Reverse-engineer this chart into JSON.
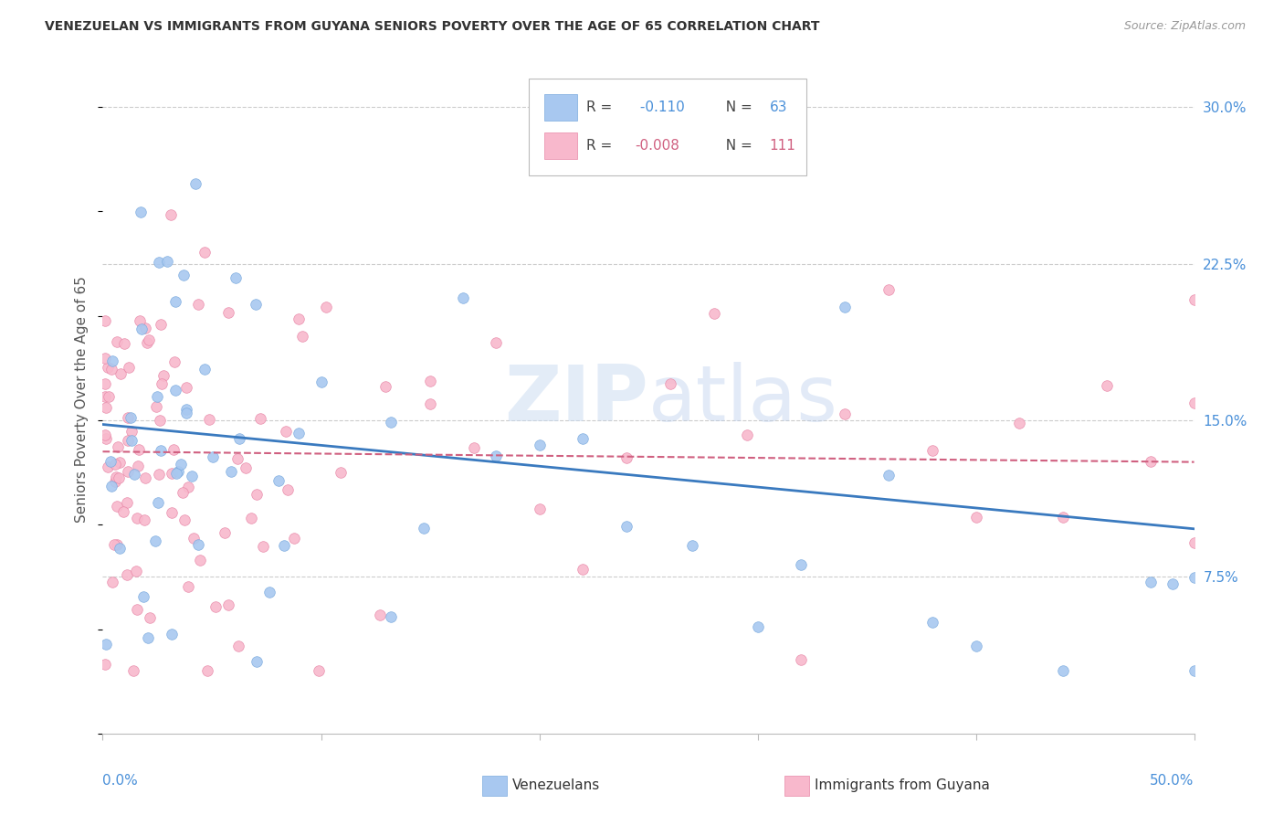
{
  "title": "VENEZUELAN VS IMMIGRANTS FROM GUYANA SENIORS POVERTY OVER THE AGE OF 65 CORRELATION CHART",
  "source": "Source: ZipAtlas.com",
  "ylabel": "Seniors Poverty Over the Age of 65",
  "legend_blue_r": "-0.110",
  "legend_blue_n": "63",
  "legend_pink_r": "-0.008",
  "legend_pink_n": "111",
  "legend_label_blue": "Venezuelans",
  "legend_label_pink": "Immigrants from Guyana",
  "blue_color": "#a8c8f0",
  "blue_edge": "#7aaade",
  "pink_color": "#f8b8cc",
  "pink_edge": "#e888a8",
  "trendline_blue": "#3a7abf",
  "trendline_pink": "#d06080",
  "watermark_color": "#ccddf0",
  "xmin": 0.0,
  "xmax": 0.5,
  "ymin": 0.0,
  "ymax": 0.32,
  "blue_trendline_start_y": 0.148,
  "blue_trendline_end_y": 0.098,
  "pink_trendline_start_y": 0.135,
  "pink_trendline_end_y": 0.13,
  "background_color": "#ffffff",
  "grid_color": "#cccccc",
  "axis_color": "#bbbbbb",
  "tick_label_color": "#4a90d9",
  "label_color": "#555555"
}
